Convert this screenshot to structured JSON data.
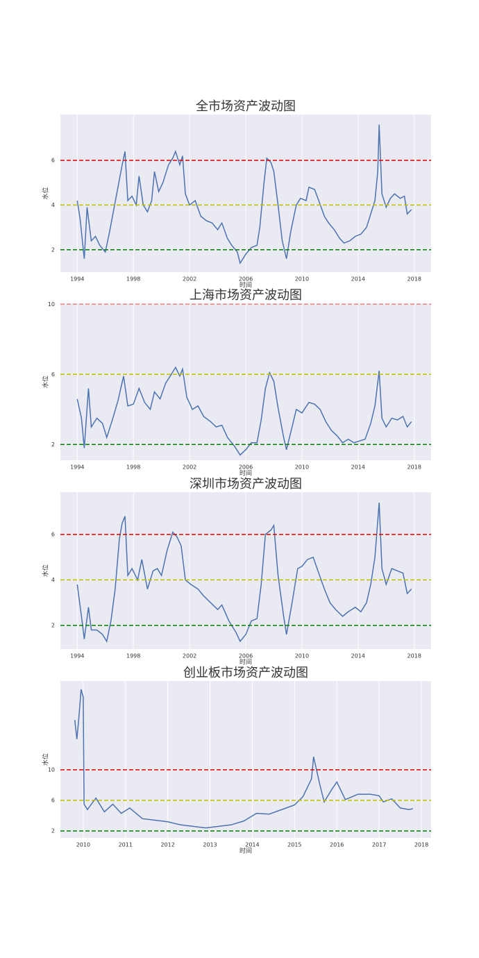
{
  "chart_data": [
    {
      "type": "line",
      "title": "全市场资产波动图",
      "xlabel": "时间",
      "ylabel": "水位",
      "grid": true,
      "x": [
        1994.0,
        1994.2,
        1994.5,
        1994.7,
        1995.0,
        1995.3,
        1995.6,
        1996.0,
        1996.3,
        1996.6,
        1996.9,
        1997.2,
        1997.4,
        1997.6,
        1997.9,
        1998.2,
        1998.4,
        1998.7,
        1999.0,
        1999.3,
        1999.5,
        1999.8,
        2000.1,
        2000.5,
        2000.8,
        2001.0,
        2001.3,
        2001.5,
        2001.7,
        2002.0,
        2002.4,
        2002.8,
        2003.2,
        2003.6,
        2004.0,
        2004.3,
        2004.7,
        2005.0,
        2005.4,
        2005.6,
        2006.0,
        2006.4,
        2006.8,
        2007.0,
        2007.3,
        2007.5,
        2007.8,
        2008.0,
        2008.3,
        2008.6,
        2008.9,
        2009.2,
        2009.6,
        2009.9,
        2010.3,
        2010.5,
        2010.9,
        2011.2,
        2011.6,
        2011.9,
        2012.3,
        2012.7,
        2013.0,
        2013.4,
        2013.8,
        2014.2,
        2014.6,
        2014.9,
        2015.2,
        2015.4,
        2015.5,
        2015.7,
        2016.0,
        2016.3,
        2016.6,
        2017.0,
        2017.3,
        2017.5,
        2017.8
      ],
      "series": [
        {
          "color": "#4c72b0",
          "values": [
            4.2,
            3.4,
            1.6,
            3.9,
            2.4,
            2.6,
            2.2,
            1.9,
            2.8,
            3.8,
            4.8,
            5.8,
            6.4,
            4.2,
            4.4,
            4.0,
            5.3,
            4.0,
            3.7,
            4.2,
            5.5,
            4.6,
            5.0,
            5.8,
            6.1,
            6.4,
            5.8,
            6.2,
            4.5,
            4.0,
            4.2,
            3.5,
            3.3,
            3.2,
            2.9,
            3.2,
            2.5,
            2.2,
            1.9,
            1.4,
            1.8,
            2.1,
            2.2,
            3.0,
            5.0,
            6.1,
            5.9,
            5.5,
            4.0,
            2.4,
            1.6,
            2.8,
            4.0,
            4.3,
            4.2,
            4.8,
            4.7,
            4.2,
            3.5,
            3.2,
            2.9,
            2.5,
            2.3,
            2.4,
            2.6,
            2.7,
            3.0,
            3.6,
            4.2,
            5.5,
            7.6,
            4.5,
            3.9,
            4.3,
            4.5,
            4.3,
            4.4,
            3.6,
            3.8
          ]
        }
      ],
      "hlines": [
        {
          "value": 6,
          "color": "#e00000"
        },
        {
          "value": 4,
          "color": "#bfbf00"
        },
        {
          "value": 2,
          "color": "#008000"
        }
      ],
      "xlim": [
        1992.8,
        2019.2
      ],
      "xticks": [
        1994,
        1998,
        2002,
        2006,
        2010,
        2014,
        2018
      ],
      "ylim": [
        1.0,
        8.05
      ],
      "yticks": [
        2,
        4,
        6
      ]
    },
    {
      "type": "line",
      "title": "上海市场资产波动图",
      "xlabel": "时间",
      "ylabel": "水位",
      "grid": true,
      "x": [
        1994.0,
        1994.3,
        1994.5,
        1994.8,
        1995.0,
        1995.4,
        1995.8,
        1996.1,
        1996.5,
        1996.9,
        1997.3,
        1997.6,
        1998.0,
        1998.4,
        1998.8,
        1999.2,
        1999.5,
        1999.9,
        2000.3,
        2000.7,
        2001.0,
        2001.3,
        2001.5,
        2001.8,
        2002.2,
        2002.6,
        2003.0,
        2003.5,
        2003.9,
        2004.3,
        2004.7,
        2005.2,
        2005.6,
        2006.0,
        2006.4,
        2006.8,
        2007.1,
        2007.4,
        2007.7,
        2008.0,
        2008.3,
        2008.7,
        2008.9,
        2009.3,
        2009.6,
        2010.0,
        2010.5,
        2010.9,
        2011.3,
        2011.7,
        2012.1,
        2012.5,
        2012.9,
        2013.3,
        2013.7,
        2014.1,
        2014.5,
        2014.9,
        2015.2,
        2015.5,
        2015.7,
        2016.0,
        2016.4,
        2016.8,
        2017.2,
        2017.5,
        2017.8
      ],
      "series": [
        {
          "color": "#4c72b0",
          "values": [
            4.6,
            3.5,
            1.8,
            5.2,
            3.0,
            3.5,
            3.2,
            2.4,
            3.4,
            4.5,
            5.9,
            4.2,
            4.3,
            5.2,
            4.4,
            4.0,
            5.0,
            4.6,
            5.5,
            6.0,
            6.4,
            5.9,
            6.3,
            4.7,
            4.0,
            4.2,
            3.6,
            3.3,
            3.0,
            3.1,
            2.4,
            1.9,
            1.4,
            1.7,
            2.1,
            2.1,
            3.4,
            5.2,
            6.1,
            5.6,
            4.1,
            2.4,
            1.7,
            3.0,
            4.0,
            3.8,
            4.4,
            4.3,
            4.0,
            3.3,
            2.8,
            2.5,
            2.1,
            2.3,
            2.1,
            2.2,
            2.3,
            3.2,
            4.2,
            6.2,
            3.5,
            3.0,
            3.5,
            3.4,
            3.6,
            3.0,
            3.3
          ]
        }
      ],
      "hlines": [
        {
          "value": 10,
          "color": "#f08080"
        },
        {
          "value": 6,
          "color": "#bfbf00"
        },
        {
          "value": 2,
          "color": "#008000"
        }
      ],
      "xlim": [
        1992.8,
        2019.2
      ],
      "xticks": [
        1994,
        1998,
        2002,
        2006,
        2010,
        2014,
        2018
      ],
      "ylim": [
        1.1,
        10.05
      ],
      "yticks": [
        2,
        6,
        10
      ]
    },
    {
      "type": "line",
      "title": "深圳市场资产波动图",
      "xlabel": "时间",
      "ylabel": "水位",
      "grid": true,
      "x": [
        1994.0,
        1994.3,
        1994.5,
        1994.8,
        1995.0,
        1995.4,
        1995.8,
        1996.1,
        1996.4,
        1996.7,
        1997.0,
        1997.2,
        1997.4,
        1997.6,
        1997.9,
        1998.3,
        1998.6,
        1999.0,
        1999.4,
        1999.7,
        2000.0,
        2000.4,
        2000.8,
        2001.1,
        2001.4,
        2001.7,
        2002.1,
        2002.6,
        2003.0,
        2003.5,
        2004.0,
        2004.3,
        2004.8,
        2005.3,
        2005.6,
        2006.0,
        2006.4,
        2006.8,
        2007.1,
        2007.4,
        2007.8,
        2008.0,
        2008.3,
        2008.7,
        2008.9,
        2009.3,
        2009.7,
        2010.0,
        2010.4,
        2010.8,
        2011.2,
        2011.6,
        2012.0,
        2012.4,
        2012.9,
        2013.3,
        2013.8,
        2014.2,
        2014.6,
        2014.9,
        2015.2,
        2015.5,
        2015.7,
        2016.0,
        2016.4,
        2016.8,
        2017.2,
        2017.5,
        2017.8
      ],
      "series": [
        {
          "color": "#4c72b0",
          "values": [
            3.8,
            2.4,
            1.4,
            2.8,
            1.8,
            1.8,
            1.6,
            1.3,
            2.2,
            3.6,
            5.8,
            6.5,
            6.8,
            4.2,
            4.5,
            4.0,
            4.9,
            3.6,
            4.4,
            4.5,
            4.2,
            5.3,
            6.1,
            5.9,
            5.5,
            4.0,
            3.8,
            3.6,
            3.3,
            3.0,
            2.7,
            2.9,
            2.2,
            1.7,
            1.3,
            1.6,
            2.2,
            2.3,
            3.8,
            6.0,
            6.2,
            6.4,
            4.2,
            2.4,
            1.6,
            3.0,
            4.5,
            4.6,
            4.9,
            5.0,
            4.3,
            3.6,
            3.0,
            2.7,
            2.4,
            2.6,
            2.8,
            2.6,
            3.0,
            3.8,
            5.0,
            7.4,
            4.5,
            3.8,
            4.5,
            4.4,
            4.3,
            3.4,
            3.6
          ]
        }
      ],
      "hlines": [
        {
          "value": 6,
          "color": "#e00000"
        },
        {
          "value": 4,
          "color": "#bfbf00"
        },
        {
          "value": 2,
          "color": "#008000"
        }
      ],
      "xlim": [
        1992.8,
        2019.2
      ],
      "xticks": [
        1994,
        1998,
        2002,
        2006,
        2010,
        2014,
        2018
      ],
      "ylim": [
        0.96,
        7.86
      ],
      "yticks": [
        2,
        4,
        6
      ]
    },
    {
      "type": "line",
      "title": "创业板市场资产波动图",
      "xlabel": "时间",
      "ylabel": "水位",
      "grid": true,
      "x": [
        2009.8,
        2009.85,
        2009.9,
        2009.95,
        2010.0,
        2010.02,
        2010.1,
        2010.3,
        2010.5,
        2010.7,
        2010.9,
        2011.1,
        2011.4,
        2011.7,
        2012.0,
        2012.3,
        2012.6,
        2012.9,
        2013.2,
        2013.5,
        2013.8,
        2014.1,
        2014.4,
        2014.7,
        2015.0,
        2015.2,
        2015.4,
        2015.45,
        2015.6,
        2015.7,
        2015.9,
        2016.0,
        2016.2,
        2016.5,
        2016.8,
        2017.0,
        2017.1,
        2017.3,
        2017.5,
        2017.7,
        2017.8
      ],
      "series": [
        {
          "color": "#4c72b0",
          "values": [
            16.5,
            14,
            17,
            20.5,
            19.5,
            5.5,
            4.8,
            6.3,
            4.5,
            5.5,
            4.3,
            5.0,
            3.6,
            3.4,
            3.2,
            2.8,
            2.6,
            2.4,
            2.6,
            2.8,
            3.3,
            4.3,
            4.2,
            4.8,
            5.4,
            6.5,
            8.8,
            11.7,
            8.0,
            5.8,
            7.6,
            8.4,
            6.1,
            6.8,
            6.8,
            6.6,
            5.8,
            6.2,
            5.0,
            4.8,
            4.9
          ]
        }
      ],
      "hlines": [
        {
          "value": 10,
          "color": "#e00000"
        },
        {
          "value": 6,
          "color": "#bfbf00"
        },
        {
          "value": 2,
          "color": "#008000"
        }
      ],
      "xlim": [
        2009.46,
        2018.23
      ],
      "xticks": [
        2010,
        2011,
        2012,
        2013,
        2014,
        2015,
        2016,
        2017,
        2018
      ],
      "ylim": [
        1.09,
        21.6
      ],
      "yticks": [
        2,
        6,
        10
      ]
    }
  ]
}
